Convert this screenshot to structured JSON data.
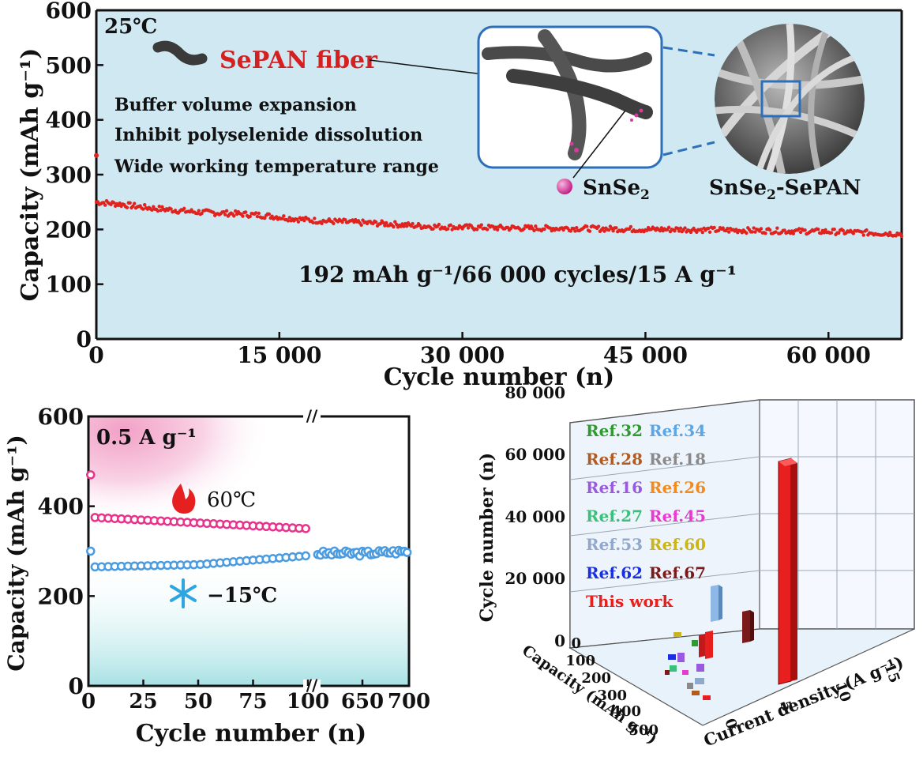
{
  "colors": {
    "red": "#e0231f",
    "pink": "#e8338c",
    "blue": "#4a9be0",
    "panel_bg": "#cfe8f2",
    "dark": "#111111"
  },
  "chart_data": [
    {
      "type": "scatter",
      "panel": "long-cycling",
      "title": "",
      "condition": "25℃",
      "xlabel": "Cycle number (n)",
      "ylabel": "Capacity (mAh g⁻¹)",
      "xlim": [
        0,
        66000
      ],
      "ylim": [
        0,
        600
      ],
      "xticks": [
        "0",
        "15 000",
        "30 000",
        "45 000",
        "60 000"
      ],
      "xtick_values": [
        0,
        15000,
        30000,
        45000,
        60000
      ],
      "yticks": [
        "0",
        "100",
        "200",
        "300",
        "400",
        "500",
        "600"
      ],
      "annotation": "192 mAh g⁻¹/66 000 cycles/15 A g⁻¹",
      "series": [
        {
          "color": "#e0231f",
          "x": [
            0,
            2000,
            4000,
            6000,
            8000,
            10000,
            12000,
            14000,
            16000,
            18000,
            20000,
            22000,
            24000,
            26000,
            28000,
            30000,
            33000,
            36000,
            39000,
            42000,
            45000,
            48000,
            51000,
            54000,
            57000,
            60000,
            63000,
            66000
          ],
          "y": [
            250,
            246,
            240,
            236,
            232,
            230,
            228,
            225,
            220,
            216,
            214,
            212,
            210,
            207,
            205,
            204,
            203,
            202,
            202,
            201,
            200,
            200,
            199,
            198,
            197,
            196,
            194,
            192
          ]
        }
      ],
      "first_point": 335,
      "inset_labels": {
        "fiber": "SePAN fiber",
        "features": [
          "Buffer volume expansion",
          "Inhibit polyselenide dissolution",
          "Wide working temperature range"
        ],
        "particle": "SnSe",
        "particle_sub": "2",
        "composite_a": "SnSe",
        "composite_sub": "2",
        "composite_b": "-SePAN"
      }
    },
    {
      "type": "scatter",
      "panel": "temperature",
      "title": "0.5 A g⁻¹",
      "xlabel": "Cycle number (n)",
      "ylabel": "Capacity (mAh g⁻¹)",
      "ylim": [
        0,
        600
      ],
      "yticks": [
        "0",
        "200",
        "400",
        "600"
      ],
      "xticks": [
        "0",
        "25",
        "50",
        "75",
        "100",
        "650",
        "700"
      ],
      "axis_break": "//",
      "series": [
        {
          "name": "60℃",
          "color": "#e8338c",
          "x": [
            1,
            3,
            100
          ],
          "y": [
            470,
            375,
            350
          ],
          "note": "cycles 1-100"
        },
        {
          "name": "−15℃",
          "color": "#4a9be0",
          "x": [
            1,
            3,
            50,
            100,
            650,
            700
          ],
          "y": [
            300,
            265,
            270,
            290,
            295,
            300
          ]
        }
      ]
    },
    {
      "type": "bar3d",
      "panel": "comparison",
      "zlabel": "Cycle number (n)",
      "ylabel": "Capacity (mAh g⁻¹)",
      "xlabel": "Current density (A g⁻¹)",
      "zticks": [
        "0",
        "20 000",
        "40 000",
        "60 000",
        "80 000"
      ],
      "yticks": [
        "0",
        "100",
        "200",
        "300",
        "400",
        "500"
      ],
      "xticks": [
        "0",
        "5",
        "10",
        "15"
      ],
      "legend": [
        {
          "label": "Ref.32",
          "color": "#2f9a2f"
        },
        {
          "label": "Ref.34",
          "color": "#5aa6e6"
        },
        {
          "label": "Ref.28",
          "color": "#b35a1f"
        },
        {
          "label": "Ref.18",
          "color": "#8a8a8a"
        },
        {
          "label": "Ref.16",
          "color": "#9a5ae0"
        },
        {
          "label": "Ref.26",
          "color": "#f28a1e"
        },
        {
          "label": "Ref.27",
          "color": "#3cbf7a"
        },
        {
          "label": "Ref.45",
          "color": "#e83ad0"
        },
        {
          "label": "Ref.53",
          "color": "#8fa8cc"
        },
        {
          "label": "Ref.60",
          "color": "#c9b41a"
        },
        {
          "label": "Ref.62",
          "color": "#1a2fe0"
        },
        {
          "label": "Ref.67",
          "color": "#7a1a1a"
        },
        {
          "label": "This work",
          "color": "#e81f1f"
        }
      ],
      "bars": [
        {
          "name": "This work",
          "current_density": 15,
          "capacity": 192,
          "cycles": 66000
        },
        {
          "name": "Ref.34",
          "current_density": 2,
          "capacity": 300,
          "cycles": 13000
        },
        {
          "name": "Ref.67",
          "current_density": 10,
          "capacity": 200,
          "cycles": 6000
        },
        {
          "name": "Ref.26",
          "current_density": 2,
          "capacity": 350,
          "cycles": 3000
        }
      ]
    }
  ]
}
